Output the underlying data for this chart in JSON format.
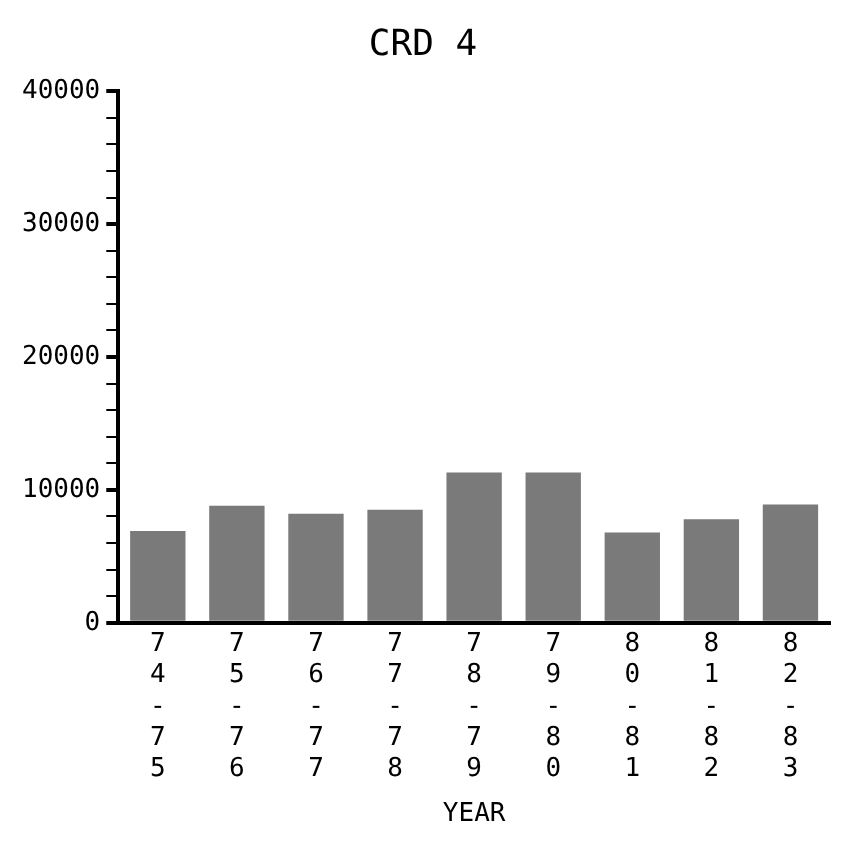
{
  "chart_data": {
    "type": "bar",
    "title": "CRD 4",
    "xlabel": "YEAR",
    "categories": [
      "74-75",
      "75-76",
      "76-77",
      "77-78",
      "78-79",
      "79-80",
      "80-81",
      "81-82",
      "82-83"
    ],
    "values": [
      6900,
      8800,
      8200,
      8500,
      11300,
      11300,
      6800,
      7800,
      8900
    ],
    "color": "#7a7a7a",
    "ylim": [
      0,
      40000
    ],
    "yticks": [
      0,
      {
        "value": 2000,
        "label": null
      },
      {
        "value": 4000,
        "label": null
      },
      {
        "value": 6000,
        "label": null
      },
      {
        "value": 8000,
        "label": null
      },
      10000,
      {
        "value": 12000,
        "label": null
      },
      {
        "value": 14000,
        "label": null
      },
      {
        "value": 16000,
        "label": null
      },
      {
        "value": 18000,
        "label": null
      },
      20000,
      {
        "value": 22000,
        "label": null
      },
      {
        "value": 24000,
        "label": null
      },
      {
        "value": 26000,
        "label": null
      },
      {
        "value": 28000,
        "label": null
      },
      30000,
      {
        "value": 32000,
        "label": null
      },
      {
        "value": 34000,
        "label": null
      },
      {
        "value": 36000,
        "label": null
      },
      {
        "value": 38000,
        "label": null
      },
      40000
    ],
    "grid": false,
    "legend": false
  }
}
